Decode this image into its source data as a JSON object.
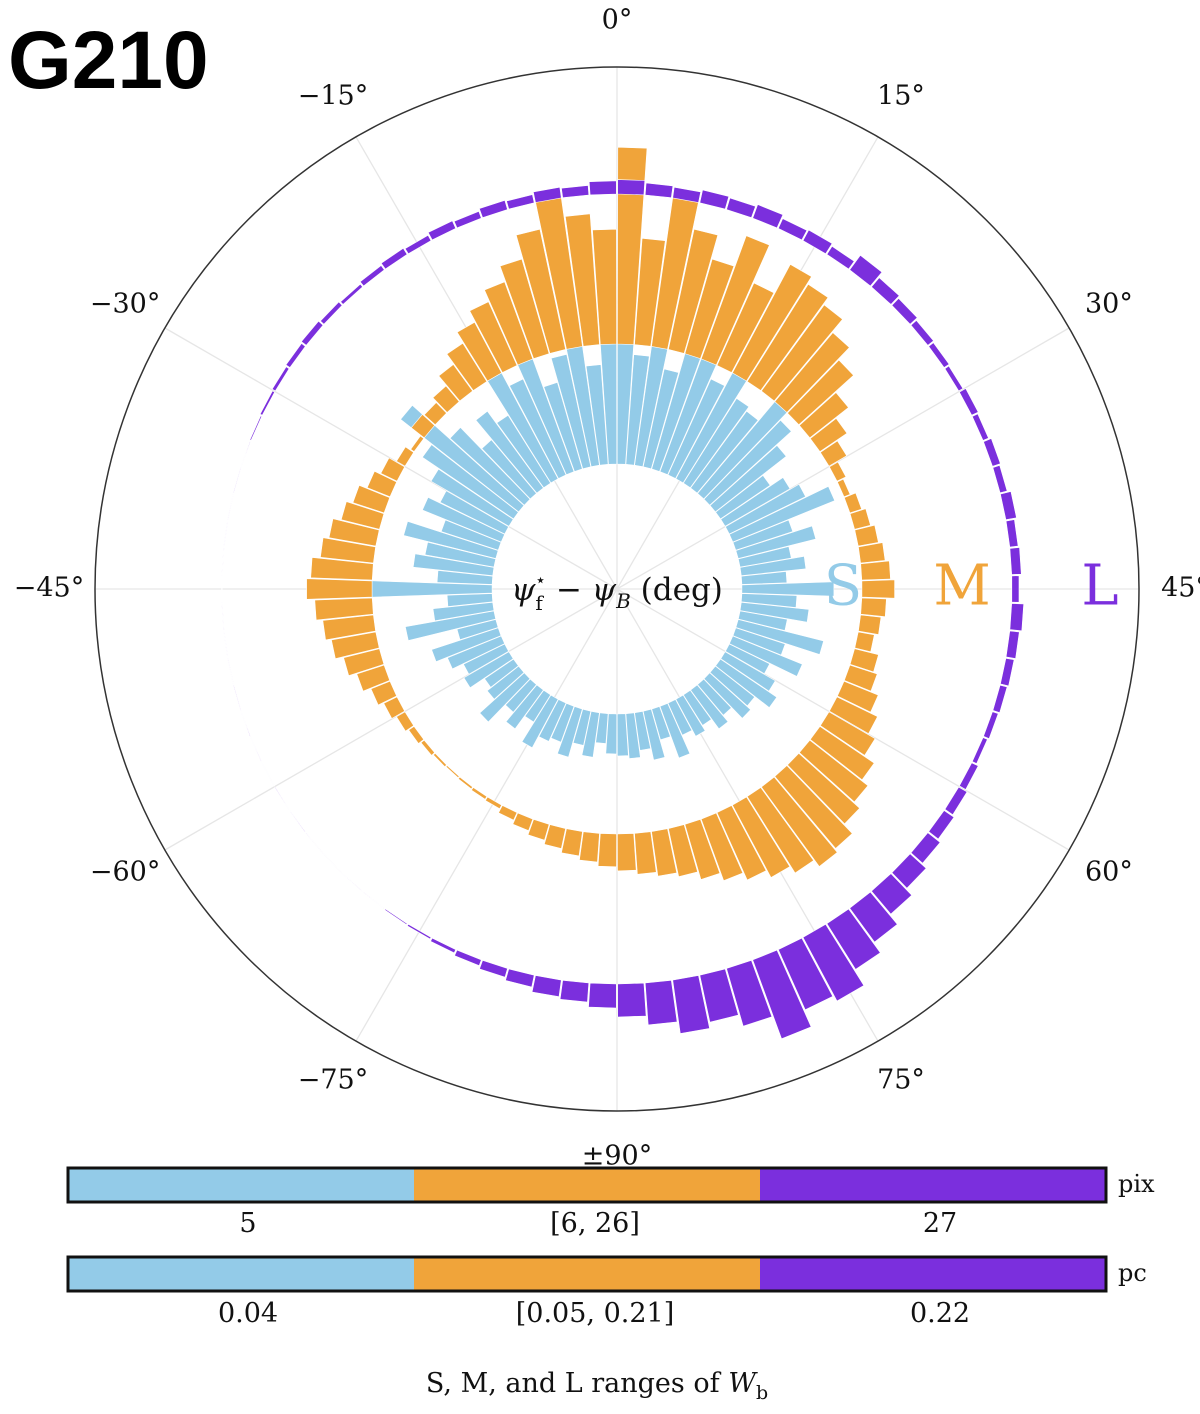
{
  "panel_title": "G210",
  "chart_data": {
    "type": "polar-histogram",
    "theta_ticks": [
      "0°",
      "15°",
      "30°",
      "45°",
      "60°",
      "75°",
      "±90°",
      "−75°",
      "−60°",
      "−45°",
      "−30°",
      "−15°"
    ],
    "theta_tick_values": [
      0,
      15,
      30,
      45,
      60,
      75,
      90,
      -75,
      -60,
      -45,
      -30,
      -15
    ],
    "center_label": {
      "psi": "ψ",
      "sub": "f",
      "sup": "⋆",
      "minus": " − ψ",
      "sub2": "B",
      "unit": " (deg)"
    },
    "series": [
      {
        "name": "S",
        "color": "#93cbe8",
        "angles_deg": [
          -89,
          -87,
          -85,
          -83,
          -81,
          -79,
          -77,
          -75,
          -73,
          -71,
          -69,
          -67,
          -65,
          -63,
          -61,
          -59,
          -57,
          -55,
          -53,
          -51,
          -49,
          -47,
          -45,
          -43,
          -41,
          -39,
          -37,
          -35,
          -33,
          -31,
          -29,
          -27,
          -25,
          -23,
          -21,
          -19,
          -17,
          -15,
          -13,
          -11,
          -9,
          -7,
          -5,
          -3,
          -1,
          1,
          3,
          5,
          7,
          9,
          11,
          13,
          15,
          17,
          19,
          21,
          23,
          25,
          27,
          29,
          31,
          33,
          35,
          37,
          39,
          41,
          43,
          45,
          47,
          49,
          51,
          53,
          55,
          57,
          59,
          61,
          63,
          65,
          67,
          69,
          71,
          73,
          75,
          77,
          79,
          81,
          83,
          85,
          87,
          89
        ],
        "counts": [
          40,
          30,
          45,
          35,
          50,
          38,
          42,
          55,
          32,
          48,
          36,
          60,
          40,
          35,
          52,
          46,
          58,
          70,
          40,
          90,
          60,
          45,
          130,
          55,
          80,
          70,
          95,
          60,
          85,
          72,
          90,
          110,
          150,
          100,
          70,
          95,
          80,
          120,
          105,
          140,
          90,
          115,
          150,
          100,
          130,
          160,
          110,
          125,
          100,
          150,
          125,
          105,
          130,
          100,
          95,
          125,
          110,
          90,
          60,
          75,
          85,
          110,
          60,
          80,
          52,
          65,
          45,
          92,
          55,
          68,
          48,
          88,
          52,
          75,
          45,
          58,
          68,
          50,
          55,
          40,
          48,
          36,
          42,
          35,
          55,
          32,
          50,
          38,
          45,
          42
        ]
      },
      {
        "name": "M",
        "color": "#f0a43a",
        "angles_deg": [
          -89,
          -87,
          -85,
          -83,
          -81,
          -79,
          -77,
          -75,
          -73,
          -71,
          -69,
          -67,
          -65,
          -63,
          -61,
          -59,
          -57,
          -55,
          -53,
          -51,
          -49,
          -47,
          -45,
          -43,
          -41,
          -39,
          -37,
          -35,
          -33,
          -31,
          -29,
          -27,
          -25,
          -23,
          -21,
          -19,
          -17,
          -15,
          -13,
          -11,
          -9,
          -7,
          -5,
          -3,
          -1,
          1,
          3,
          5,
          7,
          9,
          11,
          13,
          15,
          17,
          19,
          21,
          23,
          25,
          27,
          29,
          31,
          33,
          35,
          37,
          39,
          41,
          43,
          45,
          47,
          49,
          51,
          53,
          55,
          57,
          59,
          61,
          63,
          65,
          67,
          69,
          71,
          73,
          75,
          77,
          79,
          81,
          83,
          85,
          87,
          89
        ],
        "counts": [
          40,
          35,
          30,
          25,
          20,
          15,
          10,
          5,
          4,
          3,
          2,
          3,
          5,
          8,
          12,
          18,
          25,
          35,
          45,
          55,
          62,
          70,
          80,
          75,
          65,
          58,
          48,
          40,
          30,
          22,
          12,
          5,
          20,
          18,
          25,
          40,
          55,
          70,
          85,
          100,
          120,
          150,
          190,
          160,
          140,
          240,
          130,
          190,
          150,
          120,
          160,
          110,
          150,
          140,
          130,
          110,
          90,
          60,
          40,
          25,
          12,
          8,
          15,
          20,
          25,
          30,
          35,
          40,
          30,
          25,
          20,
          30,
          35,
          45,
          55,
          65,
          80,
          90,
          100,
          115,
          120,
          110,
          100,
          90,
          80,
          70,
          60,
          55,
          50,
          45
        ]
      },
      {
        "name": "L",
        "color": "#7b2fdd",
        "angles_deg": [
          -89,
          -87,
          -85,
          -83,
          -81,
          -79,
          -77,
          -75,
          -73,
          -71,
          -69,
          -67,
          -65,
          -63,
          -61,
          -59,
          -57,
          -55,
          -53,
          -51,
          -49,
          -47,
          -45,
          -43,
          -41,
          -39,
          -37,
          -35,
          -33,
          -31,
          -29,
          -27,
          -25,
          -23,
          -21,
          -19,
          -17,
          -15,
          -13,
          -11,
          -9,
          -7,
          -5,
          -3,
          -1,
          1,
          3,
          5,
          7,
          9,
          11,
          13,
          15,
          17,
          19,
          21,
          23,
          25,
          27,
          29,
          31,
          33,
          35,
          37,
          39,
          41,
          43,
          45,
          47,
          49,
          51,
          53,
          55,
          57,
          59,
          61,
          63,
          65,
          67,
          69,
          71,
          73,
          75,
          77,
          79,
          81,
          83,
          85,
          87,
          89
        ],
        "counts": [
          40,
          32,
          28,
          20,
          15,
          10,
          6,
          3,
          2,
          1,
          1,
          1,
          1,
          1,
          1,
          1,
          1,
          1,
          1,
          1,
          1,
          1,
          1,
          1,
          1,
          1,
          1,
          1,
          2,
          4,
          6,
          8,
          10,
          8,
          6,
          9,
          12,
          10,
          14,
          12,
          16,
          14,
          18,
          16,
          22,
          24,
          20,
          18,
          22,
          20,
          24,
          18,
          20,
          16,
          30,
          20,
          16,
          12,
          10,
          8,
          12,
          10,
          14,
          12,
          18,
          14,
          16,
          12,
          20,
          16,
          14,
          12,
          10,
          8,
          12,
          16,
          20,
          26,
          36,
          50,
          70,
          90,
          120,
          110,
          140,
          100,
          80,
          90,
          70,
          55
        ]
      }
    ],
    "ring_labels": [
      "S",
      "M",
      "L"
    ]
  },
  "legend": {
    "row1": {
      "unit": "pix",
      "labels": [
        "5",
        "[6, 26]",
        "27"
      ]
    },
    "row2": {
      "unit": "pc",
      "labels": [
        "0.04",
        "[0.05, 0.21]",
        "0.22"
      ]
    },
    "colors": [
      "#93cbe8",
      "#f0a43a",
      "#7b2fdd"
    ],
    "caption": {
      "text": "S,  M,  and L ranges of ",
      "var": "W",
      "sub": "b"
    }
  }
}
